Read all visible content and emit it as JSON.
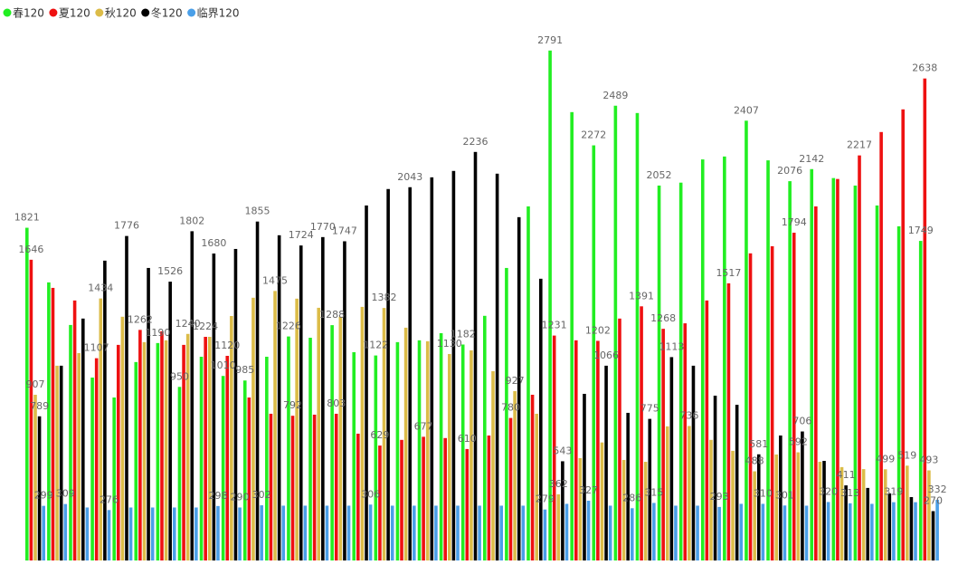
{
  "chart_data": {
    "type": "bar",
    "legend": "top-left",
    "ylim": [
      0,
      2800
    ],
    "categories": [
      null,
      null,
      null,
      null,
      null,
      null,
      null,
      null,
      null,
      null,
      null,
      null,
      null,
      null,
      null,
      null,
      null,
      null,
      null,
      null,
      null,
      null,
      null,
      null,
      null,
      null,
      null,
      null,
      null,
      null,
      null,
      null,
      null,
      null,
      null,
      null,
      null,
      null,
      null,
      null,
      null,
      null
    ],
    "series": [
      {
        "name": "春120",
        "color": "#22ee22",
        "values": [
          1821,
          1522,
          1289,
          1001,
          892,
          1086,
          1190,
          950,
          1115,
          1010,
          985,
          1115,
          1226,
          1219,
          1288,
          1140,
          1122,
          1195,
          1205,
          1244,
          1182,
          1339,
          1601,
          1938,
          2791,
          2454,
          2272,
          2489,
          2449,
          2052,
          2068,
          2195,
          2211,
          2407,
          2190,
          2076,
          2142,
          2093,
          2052,
          1943,
          1829,
          1749
        ],
        "value_labels": [
          "1821",
          null,
          null,
          null,
          null,
          null,
          "1190",
          "950",
          null,
          "1010",
          "985",
          null,
          "1226",
          null,
          "1288",
          null,
          "1122",
          null,
          null,
          null,
          "1182",
          null,
          null,
          null,
          "2791",
          null,
          "2272",
          "2489",
          null,
          "2052",
          null,
          null,
          null,
          "2407",
          null,
          "2076",
          "2142",
          null,
          null,
          null,
          null,
          "1749"
        ]
      },
      {
        "name": "夏120",
        "color": "#ee1111",
        "values": [
          1646,
          1492,
          1423,
          1107,
          1180,
          1262,
          1254,
          1180,
          1224,
          1120,
          892,
          803,
          792,
          798,
          803,
          694,
          629,
          660,
          677,
          670,
          610,
          684,
          780,
          907,
          1231,
          1205,
          1202,
          1324,
          1391,
          1268,
          1298,
          1423,
          1517,
          1681,
          1720,
          1794,
          1938,
          2088,
          2217,
          2345,
          2469,
          2638
        ],
        "value_labels": [
          "1646",
          null,
          null,
          "1107",
          null,
          "1262",
          null,
          null,
          "1224",
          "1120",
          null,
          null,
          "792",
          null,
          "803",
          null,
          "629",
          null,
          "677",
          null,
          "610",
          null,
          "780",
          null,
          "1231",
          null,
          "1202",
          null,
          "1391",
          "1268",
          null,
          null,
          "1517",
          null,
          null,
          "1794",
          null,
          null,
          "2217",
          null,
          null,
          "2638"
        ]
      },
      {
        "name": "秋120",
        "color": "#dcbc48",
        "values": [
          907,
          1066,
          1135,
          1434,
          1334,
          1195,
          1205,
          1240,
          1224,
          1338,
          1438,
          1475,
          1433,
          1383,
          1334,
          1388,
          1382,
          1274,
          1200,
          1130,
          1150,
          1036,
          927,
          803,
          362,
          560,
          646,
          550,
          540,
          734,
          736,
          660,
          600,
          488,
          580,
          592,
          540,
          511,
          500,
          499,
          519,
          493
        ],
        "value_labels": [
          "907",
          null,
          null,
          "1434",
          null,
          null,
          null,
          "1240",
          null,
          null,
          null,
          "1475",
          null,
          null,
          null,
          null,
          "1382",
          null,
          null,
          "1130",
          null,
          null,
          "927",
          null,
          "362",
          null,
          null,
          null,
          null,
          null,
          "736",
          null,
          null,
          "488",
          null,
          "592",
          null,
          null,
          null,
          "499",
          "519",
          "493"
        ]
      },
      {
        "name": "冬120",
        "color": "#000000",
        "values": [
          789,
          1066,
          1324,
          1641,
          1776,
          1601,
          1526,
          1802,
          1680,
          1705,
          1855,
          1780,
          1724,
          1770,
          1747,
          1943,
          2033,
          2043,
          2097,
          2132,
          2236,
          2117,
          1879,
          1542,
          543,
          912,
          1066,
          808,
          775,
          1113,
          1066,
          902,
          852,
          581,
          684,
          706,
          545,
          411,
          397,
          367,
          347,
          270
        ],
        "value_labels": [
          "789",
          null,
          null,
          null,
          "1776",
          null,
          "1526",
          "1802",
          "1680",
          null,
          "1855",
          null,
          "1724",
          "1770",
          "1747",
          null,
          null,
          "2043",
          null,
          null,
          "2236",
          null,
          null,
          null,
          "543",
          null,
          "1066",
          null,
          "775",
          "1113",
          null,
          null,
          null,
          "581",
          null,
          "706",
          null,
          "411",
          null,
          null,
          null,
          "270"
        ]
      },
      {
        "name": "临界120",
        "color": "#4a9fe8",
        "values": [
          299,
          309,
          290,
          276,
          290,
          290,
          290,
          290,
          298,
          290,
          302,
          300,
          300,
          300,
          300,
          306,
          300,
          300,
          300,
          300,
          300,
          300,
          300,
          279,
          310,
          327,
          300,
          286,
          315,
          300,
          300,
          293,
          310,
          310,
          301,
          300,
          320,
          313,
          310,
          319,
          319,
          332
        ],
        "value_labels": [
          "299",
          "309",
          null,
          "276",
          null,
          null,
          null,
          null,
          "298",
          "290",
          "302",
          null,
          null,
          null,
          null,
          "306",
          null,
          null,
          null,
          null,
          null,
          null,
          null,
          "279",
          null,
          "327",
          null,
          "286",
          "315",
          null,
          null,
          "293",
          null,
          "310",
          "301",
          null,
          "320",
          "313",
          null,
          "319",
          null,
          "332"
        ]
      }
    ]
  }
}
